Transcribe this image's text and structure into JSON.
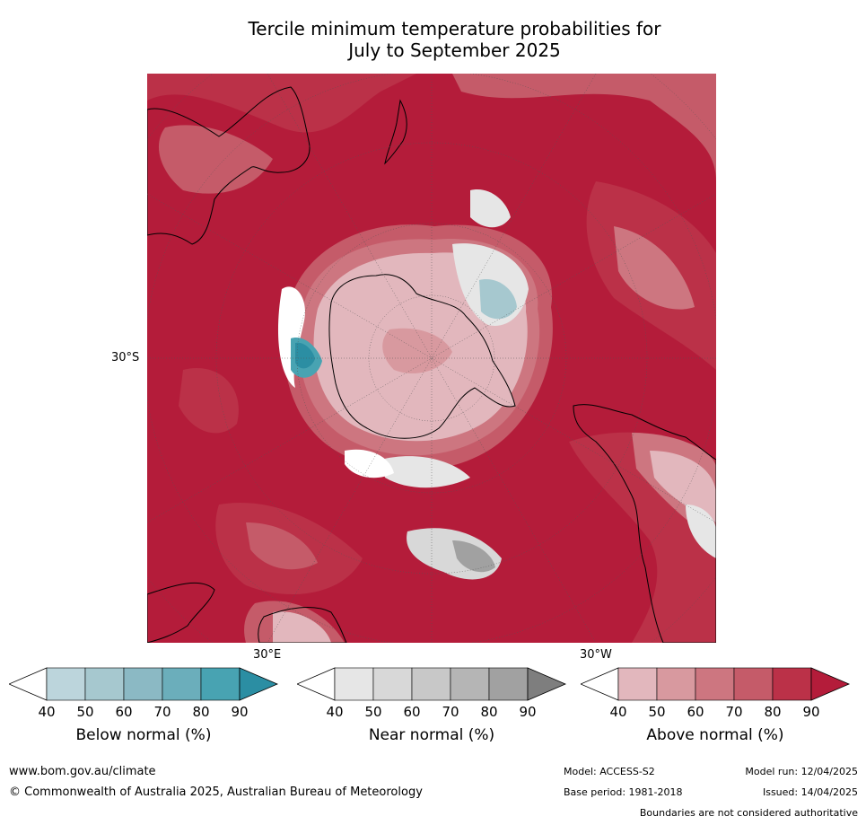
{
  "title_line1": "Tercile minimum temperature probabilities for",
  "title_line2": "July to September 2025",
  "map": {
    "projection": "south-polar-stereographic",
    "labels": {
      "lat": "30°S",
      "lon_east": "30°E",
      "lon_west": "30°W"
    }
  },
  "legends": [
    {
      "title": "Below normal (%)",
      "ticks": [
        "40",
        "50",
        "60",
        "70",
        "80",
        "90"
      ],
      "colors": [
        "#ffffff",
        "#bcd5dc",
        "#a6c8cf",
        "#8bb9c4",
        "#6baebb",
        "#48a3b2",
        "#2b8ea3"
      ]
    },
    {
      "title": "Near normal (%)",
      "ticks": [
        "40",
        "50",
        "60",
        "70",
        "80",
        "90"
      ],
      "colors": [
        "#ffffff",
        "#e6e6e6",
        "#d8d8d8",
        "#c8c8c8",
        "#b5b5b5",
        "#a1a1a1",
        "#7e7e7e"
      ]
    },
    {
      "title": "Above normal (%)",
      "ticks": [
        "40",
        "50",
        "60",
        "70",
        "80",
        "90"
      ],
      "colors": [
        "#ffffff",
        "#e2b7bd",
        "#d8999f",
        "#cd7680",
        "#c55b69",
        "#bb3148",
        "#b41c3a"
      ]
    }
  ],
  "footer": {
    "site": "www.bom.gov.au/climate",
    "copyright": "© Commonwealth of Australia 2025, Australian Bureau of Meteorology",
    "model": "Model: ACCESS-S2",
    "base_period": "Base period: 1981-2018",
    "model_run": "Model run: 12/04/2025",
    "issued": "Issued: 14/04/2025",
    "disclaimer": "Boundaries are not considered authoritative"
  }
}
